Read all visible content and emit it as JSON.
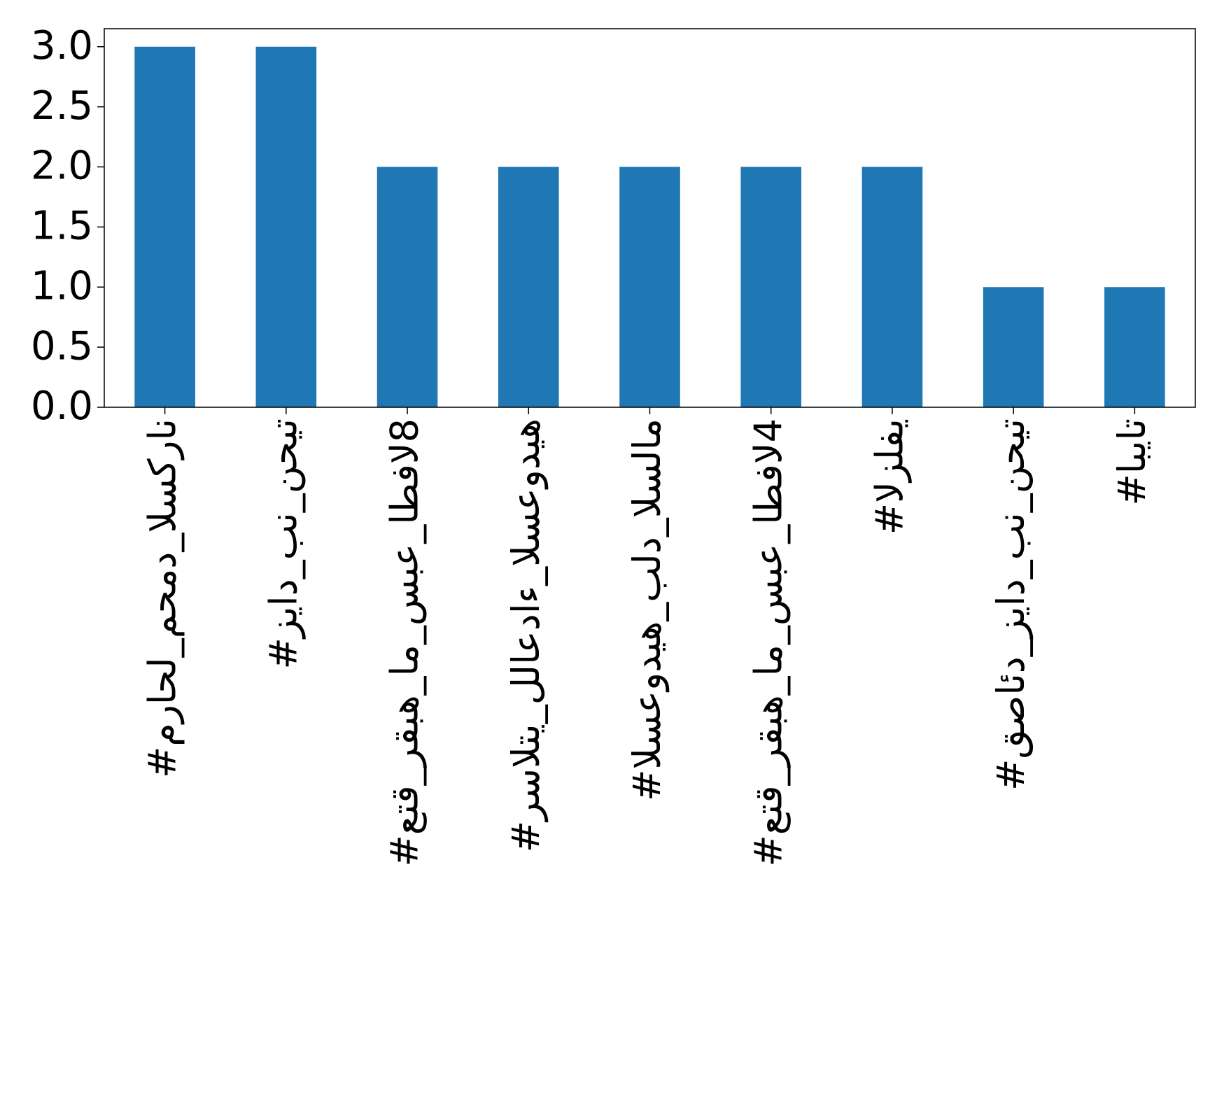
{
  "chart_data": {
    "type": "bar",
    "categories": [
      "#مراحل_محمد_السكران",
      "#زياد_بن_نحيت",
      "#عتق_رقبه_ام_سبع_اطفال8",
      "#رسالتي_للاعداء_السعوديه",
      "#السعوديه_بلد_السلام",
      "#عتق_رقبه_ام_سبع_اطفال4",
      "#الزلفي",
      "#قصائد_زياد_بن_نحيت",
      "#ابيات"
    ],
    "values": [
      3,
      3,
      2,
      2,
      2,
      2,
      2,
      1,
      1
    ],
    "color": "#1f77b4",
    "ylim": [
      0,
      3.15
    ],
    "yticks": [
      {
        "value": 0,
        "label": "0.0"
      },
      {
        "value": 0.5,
        "label": "0.5"
      },
      {
        "value": 1,
        "label": "1.0"
      },
      {
        "value": 1.5,
        "label": "1.5"
      },
      {
        "value": 2,
        "label": "2.0"
      },
      {
        "value": 2.5,
        "label": "2.5"
      },
      {
        "value": 3,
        "label": "3.0"
      }
    ],
    "grid": false
  }
}
